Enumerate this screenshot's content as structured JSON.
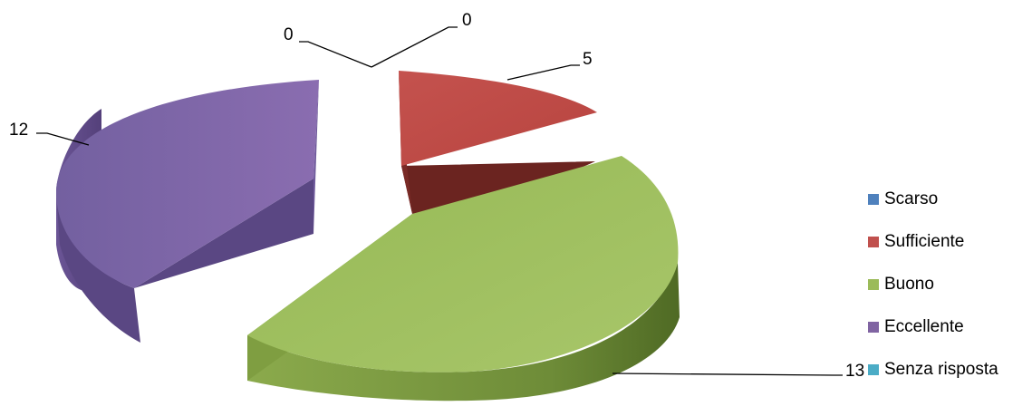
{
  "chart_data": {
    "type": "pie",
    "style": "3d-exploded",
    "categories": [
      "Scarso",
      "Sufficiente",
      "Buono",
      "Eccellente",
      "Senza risposta"
    ],
    "values": [
      0,
      5,
      13,
      12,
      0
    ],
    "data_labels": [
      "0",
      "5",
      "13",
      "12",
      "0"
    ],
    "colors": [
      "#4F81BD",
      "#C0504D",
      "#9BBB59",
      "#8064A2",
      "#4BACC6"
    ],
    "side_colors": [
      "#2E5B8E",
      "#6E2622",
      "#5E7A2E",
      "#4E3B6D",
      "#2B7E93"
    ],
    "legend_position": "right",
    "title": ""
  }
}
